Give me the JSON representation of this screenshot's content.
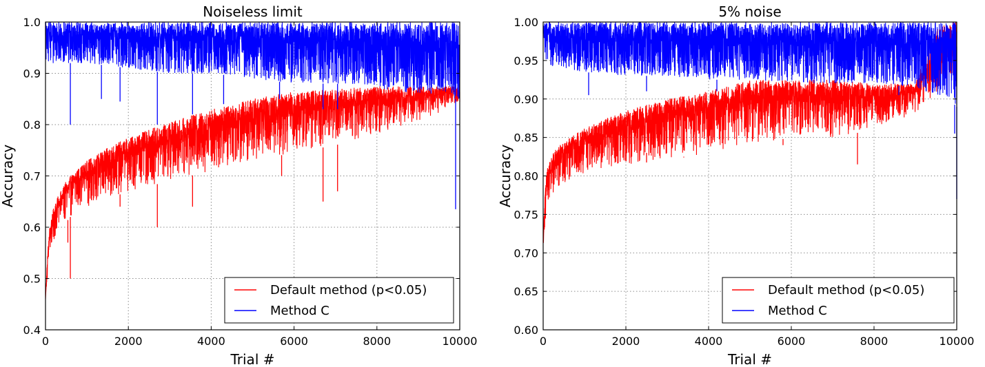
{
  "chart_data": [
    {
      "type": "line",
      "title": "Noiseless limit",
      "xlabel": "Trial #",
      "ylabel": "Accuracy",
      "xlim": [
        0,
        10000
      ],
      "ylim": [
        0.4,
        1.0
      ],
      "xticks": [
        "0",
        "2000",
        "4000",
        "6000",
        "8000",
        "10000"
      ],
      "xtick_values": [
        0,
        2000,
        4000,
        6000,
        8000,
        10000
      ],
      "yticks": [
        "0.4",
        "0.5",
        "0.6",
        "0.7",
        "0.8",
        "0.9",
        "1.0"
      ],
      "ytick_values": [
        0.4,
        0.5,
        0.6,
        0.7,
        0.8,
        0.9,
        1.0
      ],
      "grid": true,
      "legend_position": "lower-right",
      "series": [
        {
          "name": "Default method (p<0.05)",
          "color": "#ff0000",
          "x": [
            0,
            50,
            100,
            200,
            300,
            500,
            700,
            1000,
            1500,
            2000,
            3000,
            4000,
            5000,
            6000,
            7000,
            8000,
            9000,
            9500,
            9900,
            10000
          ],
          "upper": [
            0.46,
            0.55,
            0.6,
            0.64,
            0.66,
            0.69,
            0.71,
            0.73,
            0.755,
            0.775,
            0.805,
            0.83,
            0.85,
            0.865,
            0.87,
            0.875,
            0.875,
            0.875,
            0.875,
            0.87
          ],
          "lower": [
            0.46,
            0.5,
            0.55,
            0.57,
            0.6,
            0.61,
            0.63,
            0.64,
            0.655,
            0.67,
            0.69,
            0.71,
            0.73,
            0.745,
            0.76,
            0.78,
            0.805,
            0.82,
            0.835,
            0.84
          ],
          "spikes": [
            [
              600,
              0.5
            ],
            [
              540,
              0.57
            ],
            [
              2700,
              0.6
            ],
            [
              3550,
              0.64
            ],
            [
              1800,
              0.64
            ],
            [
              6700,
              0.65
            ],
            [
              7050,
              0.67
            ],
            [
              5700,
              0.7
            ]
          ]
        },
        {
          "name": "Method C",
          "color": "#0000ff",
          "x": [
            0,
            500,
            1000,
            2000,
            3000,
            4000,
            5000,
            6000,
            7000,
            8000,
            9000,
            9500,
            9900,
            10000
          ],
          "upper": [
            1.0,
            1.0,
            1.0,
            1.0,
            1.0,
            1.0,
            1.0,
            1.0,
            1.0,
            1.0,
            1.0,
            1.0,
            1.0,
            1.0
          ],
          "lower": [
            0.92,
            0.92,
            0.92,
            0.91,
            0.9,
            0.9,
            0.89,
            0.88,
            0.88,
            0.87,
            0.86,
            0.86,
            0.85,
            0.85
          ],
          "spikes": [
            [
              600,
              0.8
            ],
            [
              1350,
              0.85
            ],
            [
              1800,
              0.845
            ],
            [
              2700,
              0.8
            ],
            [
              3550,
              0.82
            ],
            [
              4300,
              0.84
            ],
            [
              5650,
              0.85
            ],
            [
              6700,
              0.83
            ],
            [
              7050,
              0.83
            ],
            [
              9900,
              0.635
            ]
          ]
        }
      ]
    },
    {
      "type": "line",
      "title": "5% noise",
      "xlabel": "Trial #",
      "ylabel": "Accuracy",
      "xlim": [
        0,
        10000
      ],
      "ylim": [
        0.6,
        1.0
      ],
      "xticks": [
        "0",
        "2000",
        "4000",
        "6000",
        "8000",
        "10000"
      ],
      "xtick_values": [
        0,
        2000,
        4000,
        6000,
        8000,
        10000
      ],
      "yticks": [
        "0.60",
        "0.65",
        "0.70",
        "0.75",
        "0.80",
        "0.85",
        "0.90",
        "0.95",
        "1.00"
      ],
      "ytick_values": [
        0.6,
        0.65,
        0.7,
        0.75,
        0.8,
        0.85,
        0.9,
        0.95,
        1.0
      ],
      "grid": true,
      "legend_position": "lower-right",
      "series": [
        {
          "name": "Default method (p<0.05)",
          "color": "#ff0000",
          "x": [
            0,
            50,
            100,
            200,
            300,
            500,
            1000,
            1500,
            2000,
            3000,
            4000,
            5000,
            6000,
            7000,
            8000,
            8500,
            9000,
            9500,
            9800,
            10000
          ],
          "upper": [
            0.72,
            0.79,
            0.81,
            0.825,
            0.835,
            0.845,
            0.862,
            0.875,
            0.885,
            0.9,
            0.91,
            0.925,
            0.925,
            0.925,
            0.92,
            0.92,
            0.92,
            0.99,
            1.0,
            1.0
          ],
          "lower": [
            0.7,
            0.74,
            0.76,
            0.77,
            0.78,
            0.79,
            0.8,
            0.81,
            0.815,
            0.82,
            0.83,
            0.84,
            0.85,
            0.85,
            0.86,
            0.87,
            0.88,
            0.9,
            0.92,
            0.94
          ],
          "spikes": [
            [
              7600,
              0.815
            ],
            [
              5800,
              0.84
            ],
            [
              3400,
              0.825
            ],
            [
              2500,
              0.83
            ]
          ]
        },
        {
          "name": "Method C",
          "color": "#0000ff",
          "x": [
            0,
            500,
            1000,
            2000,
            3000,
            4000,
            5000,
            6000,
            7000,
            8000,
            9000,
            9500,
            9900,
            10000
          ],
          "upper": [
            1.0,
            1.0,
            1.0,
            1.0,
            1.0,
            1.0,
            1.0,
            1.0,
            1.0,
            1.0,
            1.0,
            1.0,
            1.0,
            1.0
          ],
          "lower": [
            0.945,
            0.94,
            0.935,
            0.93,
            0.93,
            0.925,
            0.925,
            0.92,
            0.92,
            0.92,
            0.915,
            0.905,
            0.895,
            0.89
          ],
          "spikes": [
            [
              1100,
              0.905
            ],
            [
              2500,
              0.91
            ],
            [
              4200,
              0.91
            ],
            [
              8600,
              0.905
            ],
            [
              9950,
              0.855
            ],
            [
              10000,
              0.77
            ]
          ]
        }
      ]
    }
  ]
}
